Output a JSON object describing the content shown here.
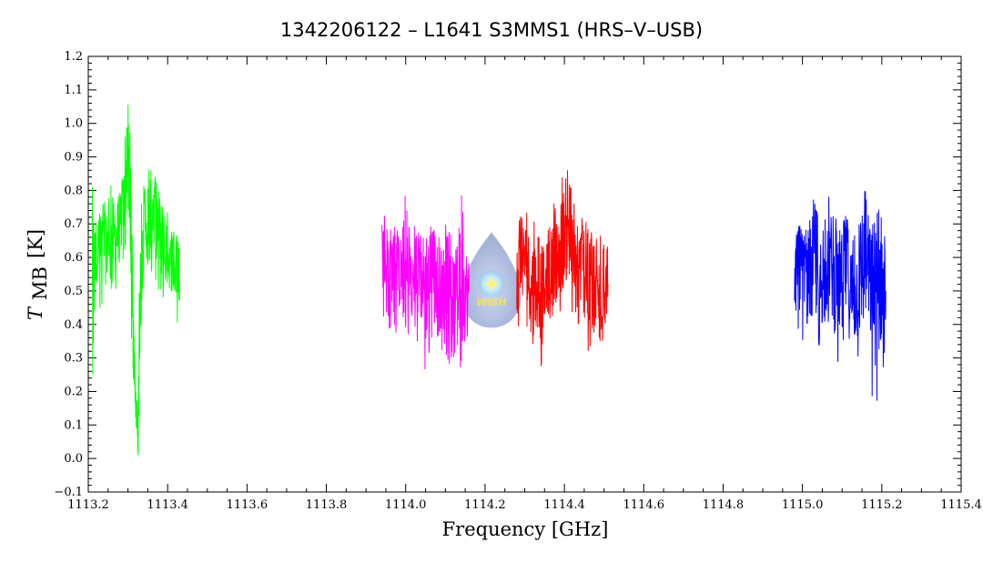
{
  "chart_data": {
    "type": "line",
    "title": "1342206122 – L1641 S3MMS1 (HRS–V–USB)",
    "xlabel": "Frequency [GHz]",
    "ylabel_main": "T",
    "ylabel_sub": "MB",
    "ylabel_unit": "[K]",
    "xlim": [
      1113.2,
      1115.4
    ],
    "ylim": [
      -0.1,
      1.2
    ],
    "x_ticks": [
      "1113.2",
      "1113.4",
      "1113.6",
      "1113.8",
      "1114.0",
      "1114.2",
      "1114.4",
      "1114.6",
      "1114.8",
      "1115.0",
      "1115.2",
      "1115.4"
    ],
    "y_ticks": [
      "−0.1",
      "0.0",
      "0.1",
      "0.2",
      "0.3",
      "0.4",
      "0.5",
      "0.6",
      "0.7",
      "0.8",
      "0.9",
      "1.0",
      "1.1",
      "1.2"
    ],
    "grid": false,
    "logo": {
      "text": "WISH",
      "icon": "water-drop-star-icon"
    },
    "series": [
      {
        "color": "#00ff00",
        "x": [
          1113.21,
          1113.215,
          1113.22,
          1113.23,
          1113.24,
          1113.25,
          1113.26,
          1113.27,
          1113.28,
          1113.29,
          1113.295,
          1113.3,
          1113.305,
          1113.31,
          1113.315,
          1113.32,
          1113.325,
          1113.33,
          1113.34,
          1113.35,
          1113.36,
          1113.37,
          1113.38,
          1113.39,
          1113.4,
          1113.41,
          1113.42,
          1113.425,
          1113.43
        ],
        "y": [
          0.6,
          0.59,
          0.62,
          0.63,
          0.62,
          0.64,
          0.65,
          0.66,
          0.7,
          0.75,
          0.84,
          0.9,
          0.78,
          0.58,
          0.3,
          0.15,
          0.1,
          0.48,
          0.68,
          0.72,
          0.75,
          0.72,
          0.68,
          0.62,
          0.6,
          0.58,
          0.55,
          0.58,
          0.53
        ],
        "ymin": [
          0.15,
          0.42,
          0.45,
          0.42,
          0.45,
          0.5,
          0.5,
          0.48,
          0.55,
          0.6,
          0.65,
          0.7,
          0.55,
          0.3,
          0.18,
          0.08,
          -0.03,
          0.25,
          0.55,
          0.55,
          0.55,
          0.5,
          0.48,
          0.45,
          0.48,
          0.46,
          0.44,
          0.36,
          0.45
        ],
        "ymax": [
          0.78,
          0.7,
          0.72,
          0.75,
          0.78,
          0.8,
          0.83,
          0.78,
          0.82,
          0.92,
          1.02,
          1.07,
          0.98,
          0.7,
          0.38,
          0.22,
          0.16,
          0.75,
          0.82,
          0.9,
          0.88,
          0.84,
          0.82,
          0.76,
          0.74,
          0.7,
          0.68,
          0.68,
          0.62
        ]
      },
      {
        "color": "#ff00ff",
        "x": [
          1113.94,
          1113.95,
          1113.96,
          1113.97,
          1113.98,
          1113.99,
          1114.0,
          1114.01,
          1114.02,
          1114.03,
          1114.04,
          1114.05,
          1114.06,
          1114.07,
          1114.08,
          1114.09,
          1114.1,
          1114.11,
          1114.12,
          1114.13,
          1114.14,
          1114.15,
          1114.16
        ],
        "y": [
          0.55,
          0.6,
          0.58,
          0.57,
          0.56,
          0.55,
          0.54,
          0.55,
          0.52,
          0.5,
          0.53,
          0.52,
          0.55,
          0.58,
          0.52,
          0.5,
          0.52,
          0.5,
          0.48,
          0.52,
          0.51,
          0.5,
          0.5
        ],
        "ymin": [
          0.4,
          0.42,
          0.38,
          0.4,
          0.35,
          0.38,
          0.36,
          0.35,
          0.4,
          0.3,
          0.32,
          0.25,
          0.3,
          0.38,
          0.35,
          0.3,
          0.32,
          0.28,
          0.3,
          0.32,
          0.25,
          0.3,
          0.35
        ],
        "ymax": [
          0.7,
          0.74,
          0.72,
          0.7,
          0.68,
          0.7,
          0.8,
          0.7,
          0.72,
          0.68,
          0.67,
          0.78,
          0.72,
          0.68,
          0.72,
          0.68,
          0.7,
          0.7,
          0.64,
          0.66,
          0.8,
          0.72,
          0.62
        ]
      },
      {
        "color": "#ff0000",
        "x": [
          1114.28,
          1114.29,
          1114.3,
          1114.31,
          1114.32,
          1114.33,
          1114.34,
          1114.35,
          1114.36,
          1114.37,
          1114.38,
          1114.39,
          1114.4,
          1114.41,
          1114.42,
          1114.43,
          1114.44,
          1114.45,
          1114.46,
          1114.47,
          1114.48,
          1114.49,
          1114.5,
          1114.51
        ],
        "y": [
          0.52,
          0.58,
          0.6,
          0.55,
          0.52,
          0.55,
          0.5,
          0.52,
          0.55,
          0.58,
          0.6,
          0.62,
          0.68,
          0.65,
          0.6,
          0.55,
          0.58,
          0.55,
          0.5,
          0.52,
          0.5,
          0.48,
          0.5,
          0.52
        ],
        "ymin": [
          0.16,
          0.4,
          0.42,
          0.35,
          0.33,
          0.4,
          0.25,
          0.38,
          0.4,
          0.42,
          0.45,
          0.4,
          0.5,
          0.45,
          0.42,
          0.4,
          0.38,
          0.35,
          0.28,
          0.35,
          0.38,
          0.32,
          0.36,
          0.4
        ],
        "ymax": [
          0.7,
          0.74,
          0.75,
          0.72,
          0.7,
          0.72,
          0.68,
          0.68,
          0.72,
          0.75,
          0.78,
          0.82,
          0.9,
          0.86,
          0.8,
          0.72,
          0.76,
          0.72,
          0.7,
          0.68,
          0.66,
          0.7,
          0.64,
          0.68
        ]
      },
      {
        "color": "#0000ff",
        "x": [
          1114.98,
          1114.99,
          1115.0,
          1115.01,
          1115.02,
          1115.03,
          1115.04,
          1115.05,
          1115.06,
          1115.07,
          1115.08,
          1115.09,
          1115.1,
          1115.11,
          1115.12,
          1115.13,
          1115.14,
          1115.15,
          1115.16,
          1115.17,
          1115.18,
          1115.19,
          1115.2,
          1115.21
        ],
        "y": [
          0.55,
          0.58,
          0.52,
          0.55,
          0.5,
          0.58,
          0.55,
          0.52,
          0.55,
          0.6,
          0.52,
          0.5,
          0.55,
          0.58,
          0.5,
          0.48,
          0.5,
          0.55,
          0.6,
          0.52,
          0.5,
          0.48,
          0.55,
          0.5
        ],
        "ymin": [
          0.42,
          0.38,
          0.32,
          0.4,
          0.35,
          0.4,
          0.3,
          0.35,
          0.38,
          0.4,
          0.32,
          0.28,
          0.35,
          0.3,
          0.22,
          0.28,
          0.3,
          0.25,
          0.3,
          0.28,
          0.06,
          0.15,
          0.17,
          0.35
        ],
        "ymax": [
          0.68,
          0.72,
          0.7,
          0.68,
          0.72,
          0.8,
          0.76,
          0.7,
          0.72,
          0.82,
          0.74,
          0.7,
          0.72,
          0.76,
          0.68,
          0.7,
          0.72,
          0.76,
          0.84,
          0.72,
          0.7,
          0.78,
          0.72,
          0.66
        ]
      }
    ]
  }
}
